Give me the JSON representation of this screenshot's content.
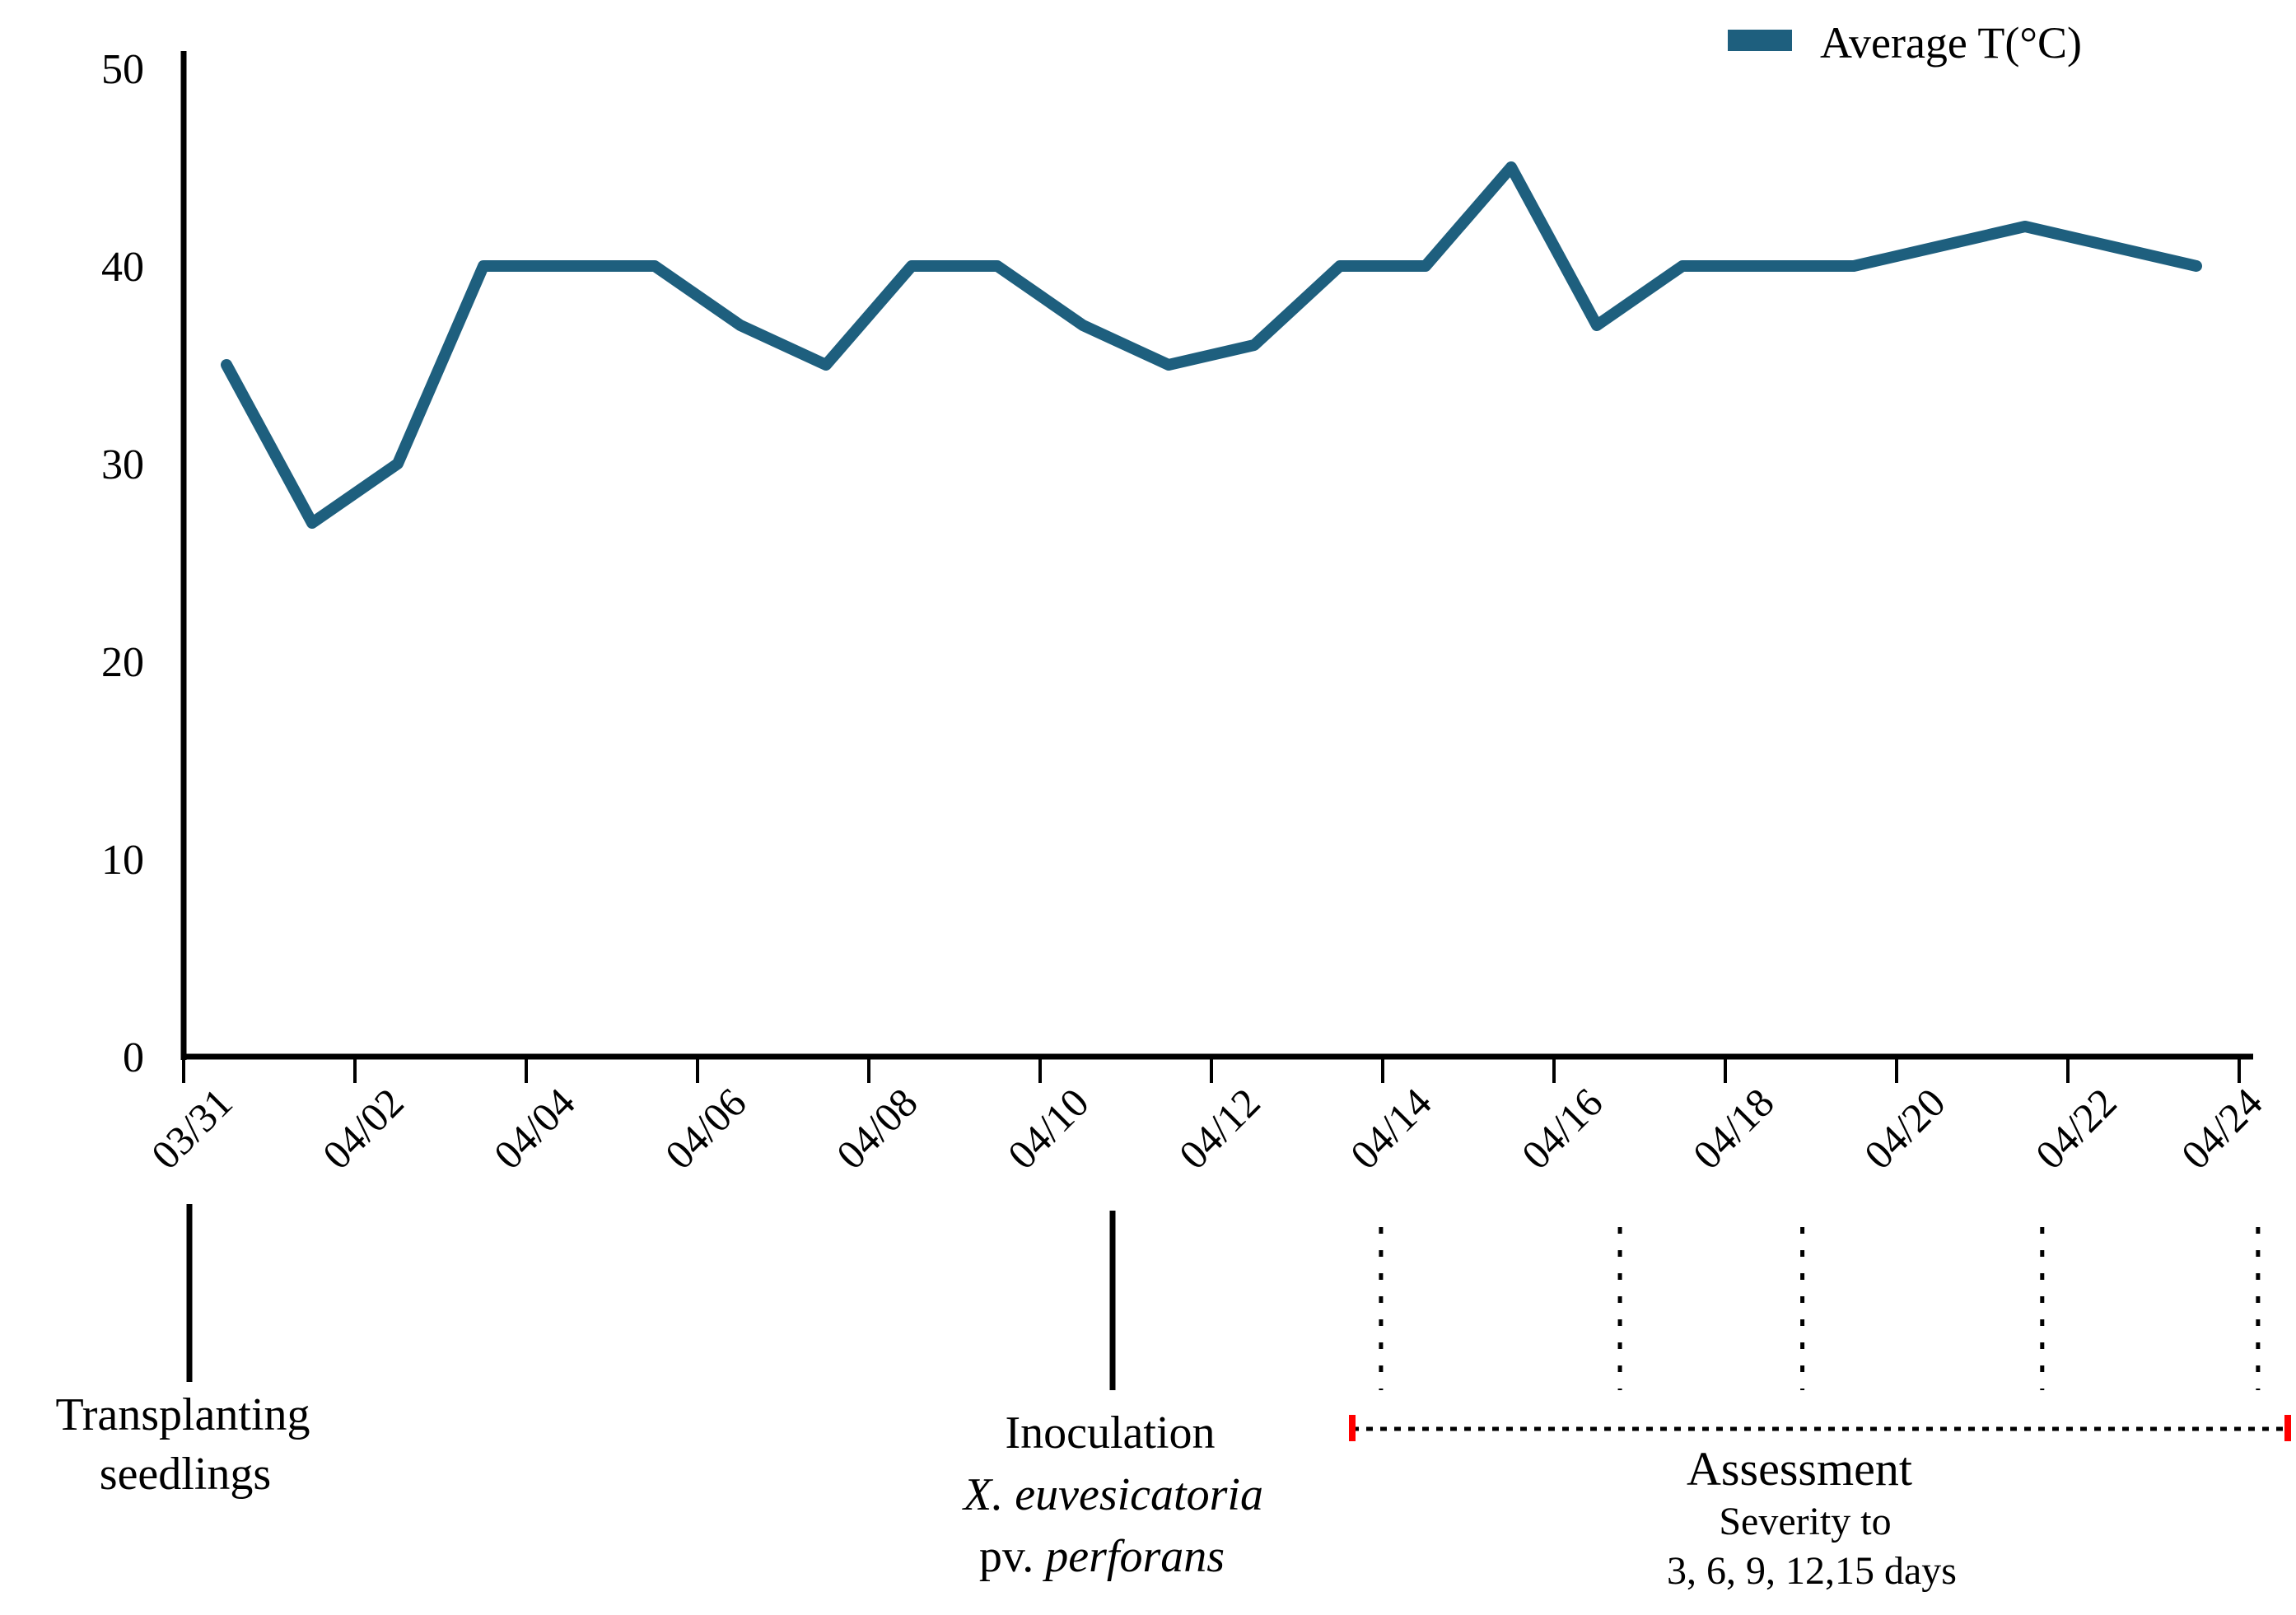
{
  "figure": {
    "background": "#ffffff"
  },
  "legend": {
    "label": "Average T(°C)",
    "marker_color": "#1e5f7e"
  },
  "chart_data": {
    "type": "line",
    "title": "",
    "xlabel": "",
    "ylabel": "",
    "ylim": [
      0,
      50
    ],
    "yticks": [
      0,
      10,
      20,
      30,
      40,
      50
    ],
    "x_tick_labels": [
      "03/31",
      "04/02",
      "04/04",
      "04/06",
      "04/08",
      "04/10",
      "04/12",
      "04/14",
      "04/16",
      "04/18",
      "04/20",
      "04/22",
      "04/24"
    ],
    "grid": false,
    "legend_position": "top-right",
    "series": [
      {
        "name": "Average T(°C)",
        "color": "#1e5f7e",
        "x": [
          "03/31",
          "04/01",
          "04/02",
          "04/03",
          "04/04",
          "04/05",
          "04/06",
          "04/07",
          "04/08",
          "04/09",
          "04/10",
          "04/11",
          "04/12",
          "04/13",
          "04/14",
          "04/15",
          "04/16",
          "04/17",
          "04/18",
          "04/19",
          "04/20",
          "04/21",
          "04/22",
          "04/23"
        ],
        "values": [
          35,
          27,
          30,
          40,
          40,
          40,
          37,
          35,
          40,
          40,
          37,
          35,
          36,
          40,
          40,
          45,
          37,
          40,
          40,
          40,
          41,
          42,
          41,
          40
        ]
      }
    ]
  },
  "annotations": {
    "transplanting": {
      "line1": "Transplanting",
      "line2": "seedlings",
      "at_date": "03/31"
    },
    "inoculation": {
      "line1": "Inoculation",
      "line2": "X. euvesicatoria",
      "line3_prefix": "pv. ",
      "line3_italic": "perforans"
    },
    "assessment": {
      "title": "Assessment",
      "subtitle1": "Severity to",
      "subtitle2": "3, 6, 9, 12,15 days",
      "dotted_marks": 5,
      "end_marker_color": "#ff0000"
    }
  }
}
